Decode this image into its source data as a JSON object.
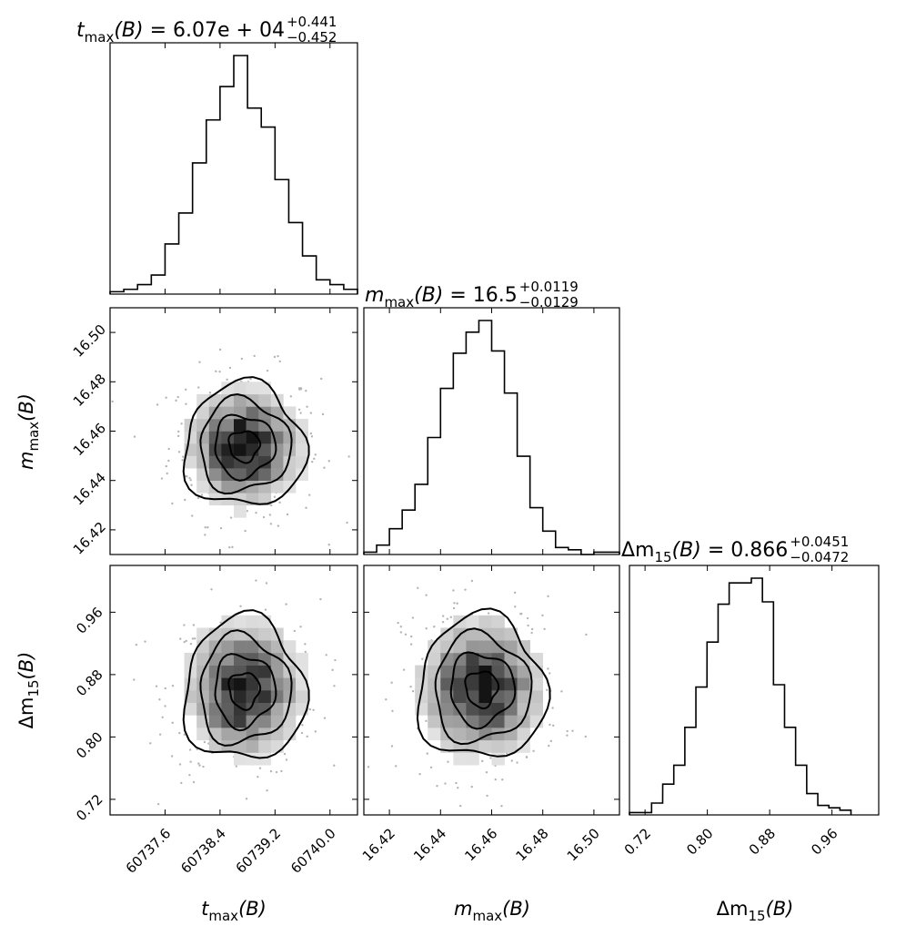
{
  "chart_data": [
    {
      "type": "histogram",
      "panel": "t_max-marginal",
      "title": {
        "lhs_base": "t",
        "lhs_sub": "max",
        "lhs_arg": "(B)",
        "value": "= 6.07e + 04",
        "err_plus": "+0.441",
        "err_minus": "−0.452"
      },
      "x_range": [
        60736.8,
        60740.4
      ],
      "bins": [
        {
          "x": 60736.9,
          "count": 0.01
        },
        {
          "x": 60737.1,
          "count": 0.02
        },
        {
          "x": 60737.3,
          "count": 0.04
        },
        {
          "x": 60737.5,
          "count": 0.08
        },
        {
          "x": 60737.7,
          "count": 0.21
        },
        {
          "x": 60737.9,
          "count": 0.34
        },
        {
          "x": 60738.1,
          "count": 0.55
        },
        {
          "x": 60738.3,
          "count": 0.73
        },
        {
          "x": 60738.5,
          "count": 0.87
        },
        {
          "x": 60738.7,
          "count": 1.0
        },
        {
          "x": 60738.9,
          "count": 0.78
        },
        {
          "x": 60739.1,
          "count": 0.7
        },
        {
          "x": 60739.3,
          "count": 0.48
        },
        {
          "x": 60739.5,
          "count": 0.3
        },
        {
          "x": 60739.7,
          "count": 0.16
        },
        {
          "x": 60739.9,
          "count": 0.06
        },
        {
          "x": 60740.1,
          "count": 0.04
        },
        {
          "x": 60740.3,
          "count": 0.02
        }
      ]
    },
    {
      "type": "histogram",
      "panel": "m_max-marginal",
      "title": {
        "lhs_base": "m",
        "lhs_sub": "max",
        "lhs_arg": "(B)",
        "value": "= 16.5",
        "err_plus": "+0.0119",
        "err_minus": "−0.0129"
      },
      "x_range": [
        16.41,
        16.51
      ],
      "bins": [
        {
          "x": 16.4125,
          "count": 0.01
        },
        {
          "x": 16.4175,
          "count": 0.04
        },
        {
          "x": 16.4225,
          "count": 0.11
        },
        {
          "x": 16.4275,
          "count": 0.19
        },
        {
          "x": 16.4325,
          "count": 0.3
        },
        {
          "x": 16.4375,
          "count": 0.5
        },
        {
          "x": 16.4425,
          "count": 0.71
        },
        {
          "x": 16.4475,
          "count": 0.86
        },
        {
          "x": 16.4525,
          "count": 0.95
        },
        {
          "x": 16.4575,
          "count": 1.0
        },
        {
          "x": 16.4625,
          "count": 0.87
        },
        {
          "x": 16.4675,
          "count": 0.69
        },
        {
          "x": 16.4725,
          "count": 0.42
        },
        {
          "x": 16.4775,
          "count": 0.2
        },
        {
          "x": 16.4825,
          "count": 0.1
        },
        {
          "x": 16.4875,
          "count": 0.03
        },
        {
          "x": 16.4925,
          "count": 0.02
        },
        {
          "x": 16.4975,
          "count": 0.0
        },
        {
          "x": 16.5025,
          "count": 0.01
        },
        {
          "x": 16.5075,
          "count": 0.01
        }
      ]
    },
    {
      "type": "histogram",
      "panel": "dm15-marginal",
      "title": {
        "lhs_base": "Δm",
        "lhs_sub": "15",
        "lhs_arg": "(B)",
        "value": "= 0.866",
        "err_plus": "+0.0451",
        "err_minus": "−0.0472"
      },
      "x_range": [
        0.7,
        1.02
      ],
      "bins": [
        {
          "x": 0.7071,
          "count": 0.01
        },
        {
          "x": 0.7213,
          "count": 0.01
        },
        {
          "x": 0.7355,
          "count": 0.05
        },
        {
          "x": 0.7498,
          "count": 0.13
        },
        {
          "x": 0.764,
          "count": 0.21
        },
        {
          "x": 0.7782,
          "count": 0.37
        },
        {
          "x": 0.7924,
          "count": 0.54
        },
        {
          "x": 0.8067,
          "count": 0.73
        },
        {
          "x": 0.8209,
          "count": 0.89
        },
        {
          "x": 0.8351,
          "count": 0.98
        },
        {
          "x": 0.8493,
          "count": 0.98
        },
        {
          "x": 0.8636,
          "count": 1.0
        },
        {
          "x": 0.8778,
          "count": 0.9
        },
        {
          "x": 0.892,
          "count": 0.55
        },
        {
          "x": 0.9062,
          "count": 0.37
        },
        {
          "x": 0.9204,
          "count": 0.21
        },
        {
          "x": 0.9347,
          "count": 0.09
        },
        {
          "x": 0.9489,
          "count": 0.04
        },
        {
          "x": 0.9631,
          "count": 0.03
        },
        {
          "x": 0.9773,
          "count": 0.02
        }
      ]
    },
    {
      "type": "contour-scatter",
      "panel": "m_max-vs-t_max",
      "x_range": [
        60736.8,
        60740.4
      ],
      "y_range": [
        16.41,
        16.51
      ],
      "center": [
        60738.75,
        16.454
      ],
      "sigma": [
        0.44,
        0.0125
      ],
      "scatter_count": 320
    },
    {
      "type": "contour-scatter",
      "panel": "dm15-vs-t_max",
      "x_range": [
        60736.8,
        60740.4
      ],
      "y_range": [
        0.7,
        1.02
      ],
      "center": [
        60738.75,
        0.86
      ],
      "sigma": [
        0.44,
        0.046
      ],
      "scatter_count": 320
    },
    {
      "type": "contour-scatter",
      "panel": "dm15-vs-m_max",
      "x_range": [
        16.41,
        16.51
      ],
      "y_range": [
        0.7,
        1.02
      ],
      "center": [
        16.456,
        0.862
      ],
      "sigma": [
        0.0125,
        0.046
      ],
      "scatter_count": 320
    }
  ],
  "axes": {
    "x_labels": [
      {
        "base": "t",
        "sub": "max",
        "arg": "(B)"
      },
      {
        "base": "m",
        "sub": "max",
        "arg": "(B)"
      },
      {
        "base": "Δm",
        "sub": "15",
        "arg": "(B)"
      }
    ],
    "y_labels": [
      {
        "base": "m",
        "sub": "max",
        "arg": "(B)"
      },
      {
        "base": "Δm",
        "sub": "15",
        "arg": "(B)"
      }
    ],
    "t_max_ticks": [
      "60737.6",
      "60738.4",
      "60739.2",
      "60740.0"
    ],
    "m_max_ticks": [
      "16.42",
      "16.44",
      "16.46",
      "16.48",
      "16.50"
    ],
    "dm15_ticks": [
      "0.72",
      "0.80",
      "0.88",
      "0.96"
    ]
  },
  "colors": {
    "ink": "#000000",
    "scatter": "#b4b4b4",
    "background": "#ffffff"
  }
}
